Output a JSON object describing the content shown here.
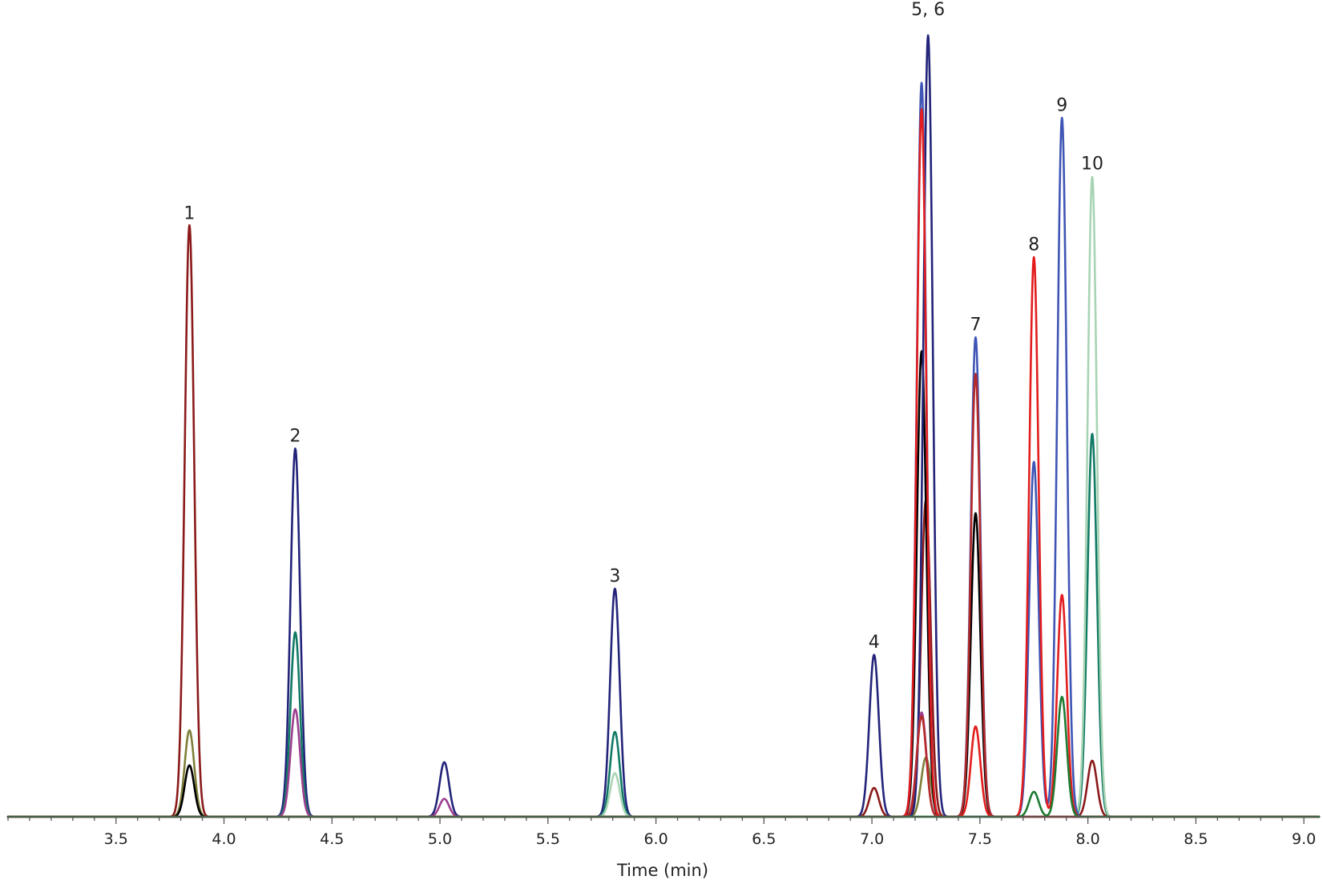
{
  "chart_data": {
    "type": "line",
    "title": "",
    "xlabel": "Time (min)",
    "ylabel": "",
    "xlim": [
      3.0,
      9.07
    ],
    "ylim": [
      0,
      100
    ],
    "xticks": [
      "3.5",
      "4.0",
      "4.5",
      "5.0",
      "5.5",
      "6.0",
      "6.5",
      "7.0",
      "7.5",
      "8.0",
      "8.5",
      "9.0"
    ],
    "grid": false,
    "legend": "none",
    "peak_labels": [
      {
        "text": "1",
        "x": 3.84,
        "y": 76.8
      },
      {
        "text": "2",
        "x": 4.33,
        "y": 48.2
      },
      {
        "text": "3",
        "x": 5.81,
        "y": 30.2
      },
      {
        "text": "4",
        "x": 7.01,
        "y": 21.7
      },
      {
        "text": "5, 6",
        "x": 7.26,
        "y": 103.0
      },
      {
        "text": "7",
        "x": 7.48,
        "y": 62.5
      },
      {
        "text": "8",
        "x": 7.75,
        "y": 72.8
      },
      {
        "text": "9",
        "x": 7.88,
        "y": 90.7
      },
      {
        "text": "10",
        "x": 8.02,
        "y": 83.2
      }
    ],
    "series": [
      {
        "color": "#8b1a1a",
        "peaks": [
          [
            3.84,
            76.0,
            0.022
          ],
          [
            7.01,
            3.7,
            0.022
          ],
          [
            7.25,
            40.7,
            0.022
          ],
          [
            8.02,
            7.2,
            0.022
          ]
        ]
      },
      {
        "color": "#7f7f3a",
        "peaks": [
          [
            3.84,
            11.1,
            0.022
          ],
          [
            7.25,
            7.6,
            0.022
          ]
        ]
      },
      {
        "color": "#000000",
        "peaks": [
          [
            3.84,
            6.6,
            0.022
          ],
          [
            7.23,
            59.8,
            0.022
          ],
          [
            7.48,
            39.0,
            0.022
          ]
        ]
      },
      {
        "color": "#23237a",
        "peaks": [
          [
            4.33,
            47.3,
            0.022
          ],
          [
            5.02,
            7.0,
            0.022
          ],
          [
            5.81,
            29.3,
            0.022
          ],
          [
            7.01,
            20.8,
            0.022
          ],
          [
            7.26,
            100.4,
            0.022
          ]
        ]
      },
      {
        "color": "#117a65",
        "peaks": [
          [
            4.33,
            23.7,
            0.022
          ],
          [
            5.81,
            10.9,
            0.022
          ],
          [
            8.02,
            49.2,
            0.022
          ]
        ]
      },
      {
        "color": "#9c3f8f",
        "peaks": [
          [
            4.33,
            13.8,
            0.022
          ],
          [
            5.02,
            2.3,
            0.022
          ],
          [
            7.23,
            13.4,
            0.022
          ]
        ]
      },
      {
        "color": "#a8d4b4",
        "peaks": [
          [
            5.81,
            5.6,
            0.022
          ],
          [
            8.02,
            82.2,
            0.022
          ]
        ]
      },
      {
        "color": "#3f55b5",
        "peaks": [
          [
            7.23,
            94.3,
            0.022
          ],
          [
            7.48,
            61.6,
            0.022
          ],
          [
            7.75,
            45.6,
            0.022
          ],
          [
            7.88,
            89.8,
            0.022
          ]
        ]
      },
      {
        "color": "#e31d1d",
        "peaks": [
          [
            7.23,
            90.9,
            0.022
          ],
          [
            7.48,
            11.6,
            0.022
          ],
          [
            7.75,
            71.9,
            0.022
          ],
          [
            7.88,
            28.5,
            0.022
          ]
        ]
      },
      {
        "color": "#b52a2a",
        "peaks": [
          [
            7.48,
            56.9,
            0.022
          ],
          [
            7.23,
            12.9,
            0.022
          ]
        ]
      },
      {
        "color": "#1e7a32",
        "peaks": [
          [
            7.75,
            3.2,
            0.022
          ],
          [
            7.88,
            15.4,
            0.022
          ]
        ]
      }
    ]
  }
}
